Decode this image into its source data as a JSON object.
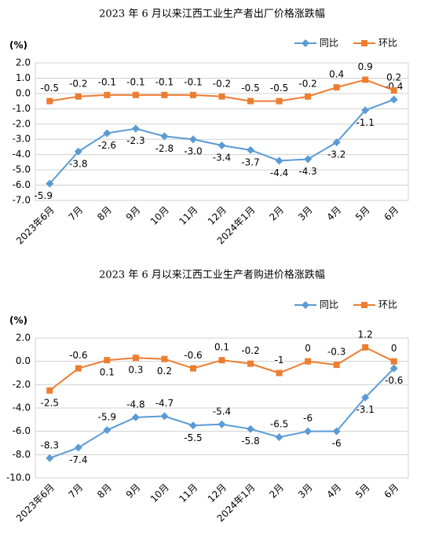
{
  "chart_data": [
    {
      "type": "line",
      "title": "2023 年 6 月以来江西工业生产者出厂价格涨跌幅",
      "y_label": "(%)",
      "categories": [
        "2023年6月",
        "7月",
        "8月",
        "9月",
        "10月",
        "11月",
        "12月",
        "2024年1月",
        "2月",
        "3月",
        "4月",
        "5月",
        "6月"
      ],
      "series": [
        {
          "name": "同比",
          "color": "#5b9bd5",
          "marker": "diamond",
          "values": [
            -5.9,
            -3.8,
            -2.6,
            -2.3,
            -2.8,
            -3.0,
            -3.4,
            -3.7,
            -4.4,
            -4.3,
            -3.2,
            -1.1,
            -0.4
          ],
          "value_labels": [
            "-5.9",
            "-3.8",
            "-2.6",
            "-2.3",
            "-2.8",
            "-3.0",
            "-3.4",
            "-3.7",
            "-4.4",
            "-4.3",
            "-3.2",
            "-1.1",
            "-0.4"
          ]
        },
        {
          "name": "环比",
          "color": "#ed7d31",
          "marker": "square",
          "values": [
            -0.5,
            -0.2,
            -0.1,
            -0.1,
            -0.1,
            -0.1,
            -0.2,
            -0.5,
            -0.5,
            -0.2,
            0.4,
            0.9,
            0.2
          ]
        }
      ],
      "ylim": [
        -7,
        2
      ],
      "yticks": [
        {
          "value": 2,
          "label": "2.0"
        },
        {
          "value": 1,
          "label": "1.0"
        },
        {
          "value": 0,
          "label": "0.0"
        },
        {
          "value": -1,
          "label": "-1.0"
        },
        {
          "value": -2,
          "label": "-2.0"
        },
        {
          "value": -3,
          "label": "-3.0"
        },
        {
          "value": -4,
          "label": "-4.0"
        },
        {
          "value": -5,
          "label": "-5.0"
        },
        {
          "value": -6,
          "label": "-6.0"
        },
        {
          "value": -7,
          "label": "-7.0"
        }
      ],
      "grid": true,
      "legend": "top-right"
    },
    {
      "type": "line",
      "title": "2023 年 6 月以来江西工业生产者购进价格涨跌幅",
      "y_label": "(%)",
      "categories": [
        "2023年6月",
        "7月",
        "8月",
        "9月",
        "10月",
        "11月",
        "12月",
        "2024年1月",
        "2月",
        "3月",
        "4月",
        "5月",
        "6月"
      ],
      "series": [
        {
          "name": "同比",
          "color": "#5b9bd5",
          "marker": "diamond",
          "values": [
            -8.3,
            -7.4,
            -5.9,
            -4.8,
            -4.7,
            -5.5,
            -5.4,
            -5.8,
            -6.5,
            -6,
            -6,
            -3.1,
            -0.6
          ]
        },
        {
          "name": "环比",
          "color": "#ed7d31",
          "marker": "square",
          "values": [
            -2.5,
            -0.6,
            0.1,
            0.3,
            0.2,
            -0.6,
            0.1,
            -0.2,
            -1,
            0,
            -0.3,
            1.2,
            0
          ]
        }
      ],
      "ylim": [
        -10,
        2
      ],
      "yticks": [
        {
          "value": 2,
          "label": "2.0"
        },
        {
          "value": 0,
          "label": "0.0"
        },
        {
          "value": -2,
          "label": "-2.0"
        },
        {
          "value": -4,
          "label": "-4.0"
        },
        {
          "value": -6,
          "label": "-6.0"
        },
        {
          "value": -8,
          "label": "-8.0"
        },
        {
          "value": -10,
          "label": "-10.0"
        }
      ],
      "grid": true,
      "legend": "top-right"
    }
  ]
}
